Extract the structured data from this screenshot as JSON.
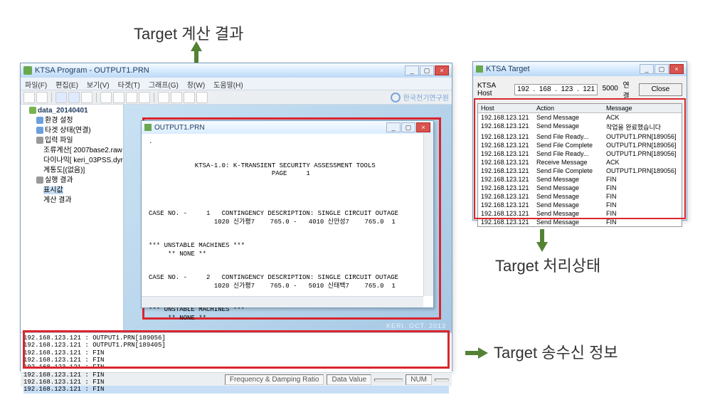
{
  "annotations": {
    "top": "Target 계산 결과",
    "right_middle": "Target 처리상태",
    "right_bottom": "Target 송수신 정보"
  },
  "main_window": {
    "title": "KTSA Program - OUTPUT1.PRN",
    "menus": [
      "파일(F)",
      "편집(E)",
      "보기(V)",
      "타겟(T)",
      "그래프(G)",
      "창(W)",
      "도움말(H)"
    ],
    "logo_text": "한국전기연구원",
    "tree": {
      "root": "data_20140401",
      "items": [
        {
          "label": "환경 설정",
          "icon": "blue"
        },
        {
          "label": "타겟 상태(연결)",
          "icon": "blue"
        },
        {
          "label": "입력 파일",
          "icon": "gray",
          "children": [
            {
              "label": "조류계산[ 2007base2.raw ]"
            },
            {
              "label": "다이나믹[ keri_03PSS.dyr ]"
            },
            {
              "label": "계통도[(없음)]"
            }
          ]
        },
        {
          "label": "실행 결과",
          "icon": "gray",
          "children": [
            {
              "label": "표시값",
              "selected": true
            },
            {
              "label": "계산 결과"
            }
          ]
        }
      ]
    },
    "inner_window": {
      "title": "OUTPUT1.PRN",
      "content": ".\n\n\n            KTSA-1.0: K-TRANSIENT SECURITY ASSESSMENT TOOLS\n                                PAGE     1\n\n\n\n\nCASE NO. -     1   CONTINGENCY DESCRIPTION: SINGLE CIRCUIT OUTAGE\n                 1020 신가평7    765.0 -   4010 신안성7    765.0  1\n\n\n*** UNSTABLE MACHINES ***\n     ** NONE **\n\n\nCASE NO. -     2   CONTINGENCY DESCRIPTION: SINGLE CIRCUIT OUTAGE\n                 1020 신가평7    765.0 -   5010 신태백7    765.0  1\n\n\n*** UNSTABLE MACHINES ***\n     ** NONE **"
    },
    "mdi_watermark": "KERI. OCT. 2013",
    "log_lines": [
      "192.168.123.121 : OUTPUT1.PRN[189056]",
      "192.168.123.121 : OUTPUT1.PRN[189405]",
      "192.168.123.121 : FIN",
      "192.168.123.121 : FIN",
      "192.168.123.121 : FIN",
      "192.168.123.121 : FIN",
      "192.168.123.121 : FIN",
      "192.168.123.121 : FIN"
    ],
    "statusbar": {
      "freq": "Frequency & Damping Ratio",
      "data": "Data Value",
      "num": "NUM"
    }
  },
  "target_window": {
    "title": "KTSA Target",
    "host_label": "KTSA Host",
    "ip": [
      "192",
      "168",
      "123",
      "121"
    ],
    "port": "5000",
    "connect": "연결",
    "close": "Close",
    "columns": [
      "Host",
      "Action",
      "Message"
    ],
    "rows": [
      [
        "192.168.123.121",
        "Send Message",
        "ACK"
      ],
      [
        "192.168.123.121",
        "Send Message",
        "작업을 완료했습니다"
      ],
      [
        "192.168.123.121",
        "Send File Ready...",
        "OUTPUT1.PRN[189056]"
      ],
      [
        "192.168.123.121",
        "Send File Complete",
        "OUTPUT1.PRN[189056]"
      ],
      [
        "192.168.123.121",
        "Send File Ready...",
        "OUTPUT1.PRN[189056]"
      ],
      [
        "192.168.123.121",
        "Receive Message",
        "ACK"
      ],
      [
        "192.168.123.121",
        "Send File Complete",
        "OUTPUT1.PRN[189056]"
      ],
      [
        "192.168.123.121",
        "Send Message",
        "FIN"
      ],
      [
        "192.168.123.121",
        "Send Message",
        "FIN"
      ],
      [
        "192.168.123.121",
        "Send Message",
        "FIN"
      ],
      [
        "192.168.123.121",
        "Send Message",
        "FIN"
      ],
      [
        "192.168.123.121",
        "Send Message",
        "FIN"
      ],
      [
        "192.168.123.121",
        "Send Message",
        "FIN"
      ],
      [
        "192.168.123.121",
        "Send Message",
        "FIN"
      ],
      [
        "192.168.123.121",
        "Send Message",
        "FIN"
      ],
      [
        "192.168.123.121",
        "Send Message",
        "FIN"
      ]
    ]
  }
}
